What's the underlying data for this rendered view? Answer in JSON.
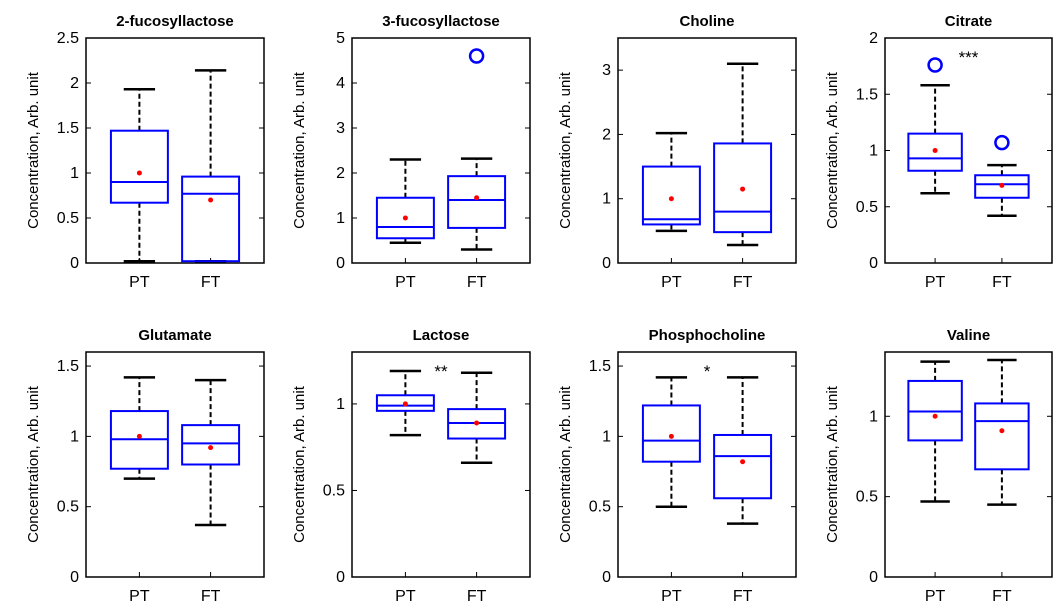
{
  "colors": {
    "box": "#0000ff",
    "whisker": "#000000",
    "mean": "#ff0000",
    "outlier": "#0000ff"
  },
  "chart_data": [
    {
      "type": "box",
      "title": "2-fucosyllactose",
      "ylabel": "Concentration, Arb. unit",
      "ylim": [
        0,
        2.5
      ],
      "yticks": [
        "0",
        "0.5",
        "1",
        "1.5",
        "2",
        "2.5"
      ],
      "categories": [
        "PT",
        "FT"
      ],
      "boxes": [
        {
          "label": "PT",
          "whisker_low": 0.02,
          "q1": 0.67,
          "median": 0.9,
          "q3": 1.47,
          "whisker_high": 1.93,
          "mean": 1.0,
          "outliers": []
        },
        {
          "label": "FT",
          "whisker_low": 0.02,
          "q1": 0.02,
          "median": 0.77,
          "q3": 0.96,
          "whisker_high": 2.14,
          "mean": 0.7,
          "outliers": []
        }
      ],
      "significance": ""
    },
    {
      "type": "box",
      "title": "3-fucosyllactose",
      "ylabel": "Concentration, Arb. unit",
      "ylim": [
        0,
        5
      ],
      "yticks": [
        "0",
        "1",
        "2",
        "3",
        "4",
        "5"
      ],
      "categories": [
        "PT",
        "FT"
      ],
      "boxes": [
        {
          "label": "PT",
          "whisker_low": 0.45,
          "q1": 0.55,
          "median": 0.8,
          "q3": 1.45,
          "whisker_high": 2.3,
          "mean": 1.0,
          "outliers": []
        },
        {
          "label": "FT",
          "whisker_low": 0.3,
          "q1": 0.78,
          "median": 1.4,
          "q3": 1.93,
          "whisker_high": 2.32,
          "mean": 1.45,
          "outliers": [
            4.6
          ]
        }
      ],
      "significance": ""
    },
    {
      "type": "box",
      "title": "Choline",
      "ylabel": "Concentration, Arb. unit",
      "ylim": [
        0,
        3.5
      ],
      "yticks": [
        "0",
        "1",
        "2",
        "3"
      ],
      "categories": [
        "PT",
        "FT"
      ],
      "boxes": [
        {
          "label": "PT",
          "whisker_low": 0.5,
          "q1": 0.6,
          "median": 0.68,
          "q3": 1.5,
          "whisker_high": 2.02,
          "mean": 1.0,
          "outliers": []
        },
        {
          "label": "FT",
          "whisker_low": 0.28,
          "q1": 0.48,
          "median": 0.8,
          "q3": 1.86,
          "whisker_high": 3.1,
          "mean": 1.15,
          "outliers": []
        }
      ],
      "significance": ""
    },
    {
      "type": "box",
      "title": "Citrate",
      "ylabel": "Concentration, Arb. unit",
      "ylim": [
        0,
        2
      ],
      "yticks": [
        "0",
        "0.5",
        "1",
        "1.5",
        "2"
      ],
      "categories": [
        "PT",
        "FT"
      ],
      "boxes": [
        {
          "label": "PT",
          "whisker_low": 0.62,
          "q1": 0.82,
          "median": 0.93,
          "q3": 1.15,
          "whisker_high": 1.58,
          "mean": 1.0,
          "outliers": [
            1.76
          ]
        },
        {
          "label": "FT",
          "whisker_low": 0.42,
          "q1": 0.58,
          "median": 0.7,
          "q3": 0.78,
          "whisker_high": 0.87,
          "mean": 0.69,
          "outliers": [
            1.07
          ]
        }
      ],
      "significance": "***"
    },
    {
      "type": "box",
      "title": "Glutamate",
      "ylabel": "Concentration, Arb. unit",
      "ylim": [
        0,
        1.6
      ],
      "yticks": [
        "0",
        "0.5",
        "1",
        "1.5"
      ],
      "categories": [
        "PT",
        "FT"
      ],
      "boxes": [
        {
          "label": "PT",
          "whisker_low": 0.7,
          "q1": 0.77,
          "median": 0.98,
          "q3": 1.18,
          "whisker_high": 1.42,
          "mean": 1.0,
          "outliers": []
        },
        {
          "label": "FT",
          "whisker_low": 0.37,
          "q1": 0.8,
          "median": 0.95,
          "q3": 1.08,
          "whisker_high": 1.4,
          "mean": 0.92,
          "outliers": []
        }
      ],
      "significance": ""
    },
    {
      "type": "box",
      "title": "Lactose",
      "ylabel": "Concentration, Arb. unit",
      "ylim": [
        0,
        1.3
      ],
      "yticks": [
        "0",
        "0.5",
        "1"
      ],
      "categories": [
        "PT",
        "FT"
      ],
      "boxes": [
        {
          "label": "PT",
          "whisker_low": 0.82,
          "q1": 0.96,
          "median": 0.99,
          "q3": 1.05,
          "whisker_high": 1.19,
          "mean": 1.0,
          "outliers": []
        },
        {
          "label": "FT",
          "whisker_low": 0.66,
          "q1": 0.8,
          "median": 0.89,
          "q3": 0.97,
          "whisker_high": 1.18,
          "mean": 0.89,
          "outliers": []
        }
      ],
      "significance": "**"
    },
    {
      "type": "box",
      "title": "Phosphocholine",
      "ylabel": "Concentration, Arb. unit",
      "ylim": [
        0,
        1.6
      ],
      "yticks": [
        "0",
        "0.5",
        "1",
        "1.5"
      ],
      "categories": [
        "PT",
        "FT"
      ],
      "boxes": [
        {
          "label": "PT",
          "whisker_low": 0.5,
          "q1": 0.82,
          "median": 0.97,
          "q3": 1.22,
          "whisker_high": 1.42,
          "mean": 1.0,
          "outliers": []
        },
        {
          "label": "FT",
          "whisker_low": 0.38,
          "q1": 0.56,
          "median": 0.86,
          "q3": 1.01,
          "whisker_high": 1.42,
          "mean": 0.82,
          "outliers": []
        }
      ],
      "significance": "*"
    },
    {
      "type": "box",
      "title": "Valine",
      "ylabel": "Concentration, Arb. unit",
      "ylim": [
        0,
        1.4
      ],
      "yticks": [
        "0",
        "0.5",
        "1"
      ],
      "categories": [
        "PT",
        "FT"
      ],
      "boxes": [
        {
          "label": "PT",
          "whisker_low": 0.47,
          "q1": 0.85,
          "median": 1.03,
          "q3": 1.22,
          "whisker_high": 1.34,
          "mean": 1.0,
          "outliers": []
        },
        {
          "label": "FT",
          "whisker_low": 0.45,
          "q1": 0.67,
          "median": 0.97,
          "q3": 1.08,
          "whisker_high": 1.35,
          "mean": 0.91,
          "outliers": []
        }
      ],
      "significance": ""
    }
  ]
}
